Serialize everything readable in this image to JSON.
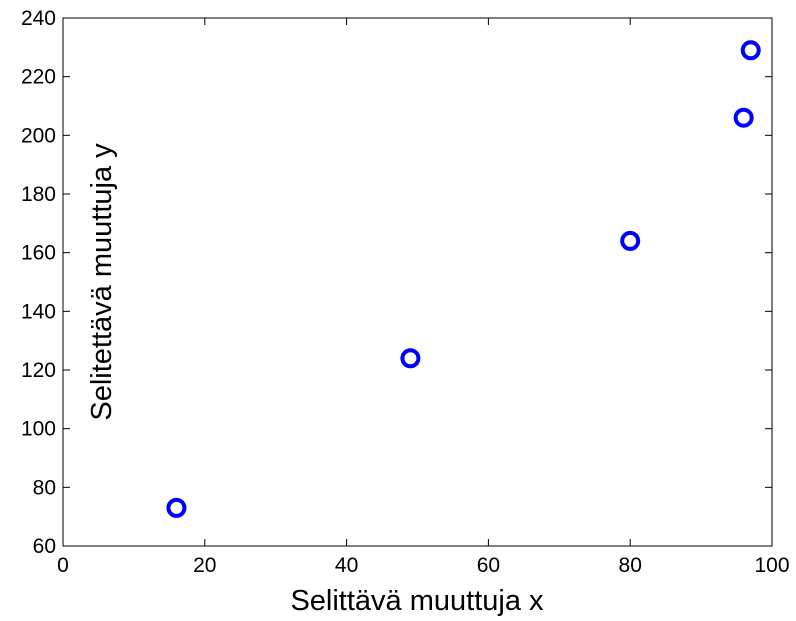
{
  "chart_data": {
    "type": "scatter",
    "title": "",
    "xlabel": "Selittävä muuttuja x",
    "ylabel": "Selitettävä muuttuja y",
    "xlim": [
      0,
      100
    ],
    "ylim": [
      60,
      240
    ],
    "xticks": [
      0,
      20,
      40,
      60,
      80,
      100
    ],
    "yticks": [
      60,
      80,
      100,
      120,
      140,
      160,
      180,
      200,
      220,
      240
    ],
    "grid": false,
    "legend": "none",
    "marker": "circle-open",
    "marker_color": "#0000ff",
    "points": [
      {
        "x": 16,
        "y": 73
      },
      {
        "x": 49,
        "y": 124
      },
      {
        "x": 80,
        "y": 164
      },
      {
        "x": 96,
        "y": 206
      },
      {
        "x": 97,
        "y": 229
      }
    ]
  }
}
